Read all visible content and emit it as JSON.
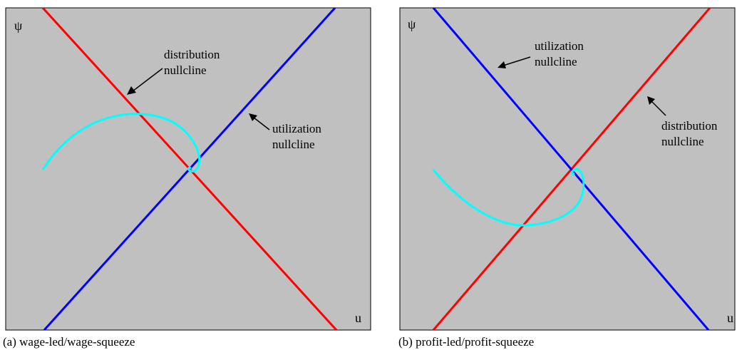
{
  "panels": [
    {
      "id": "a",
      "caption": "(a) wage-led/wage-squeeze",
      "y_axis_label": "ψ",
      "x_axis_label": "u",
      "annotations": {
        "distribution": [
          "distribution",
          "nullcline"
        ],
        "utilization": [
          "utilization",
          "nullcline"
        ]
      }
    },
    {
      "id": "b",
      "caption": "(b) profit-led/profit-squeeze",
      "y_axis_label": "ψ",
      "x_axis_label": "u",
      "annotations": {
        "utilization": [
          "utilization",
          "nullcline"
        ],
        "distribution": [
          "distribution",
          "nullcline"
        ]
      }
    }
  ],
  "colors": {
    "background": "#c0c0c0",
    "distribution_nullcline": "#ff0000",
    "utilization_nullcline": "#0000ff",
    "trajectory": "#00ffff"
  }
}
